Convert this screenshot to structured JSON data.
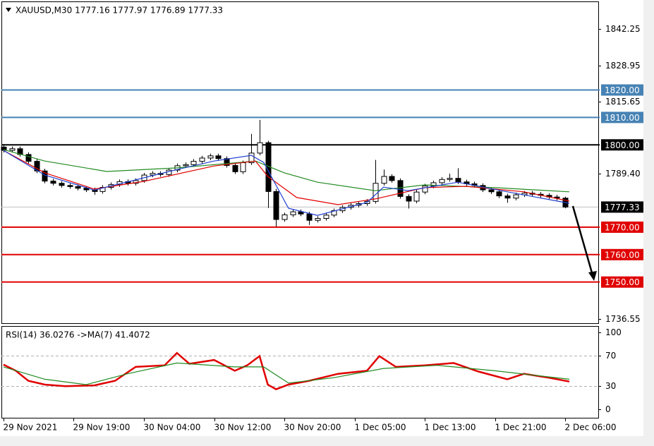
{
  "chart_data": [
    {
      "type": "candlestick",
      "title": "XAUUSD,M30  1777.16 1777.97 1776.89 1777.33",
      "xlim": [
        -0.5,
        144
      ],
      "ylim": [
        1735.0,
        1852.8
      ],
      "yticks": [
        1842.25,
        1828.95,
        1815.65,
        {
          "value": 1789.4,
          "label": "1789.40"
        },
        1736.55
      ],
      "x": [
        0,
        2,
        4,
        6,
        8,
        10,
        12,
        14,
        16,
        18,
        20,
        22,
        24,
        26,
        28,
        30,
        32,
        34,
        36,
        38,
        40,
        42,
        44,
        46,
        48,
        50,
        52,
        54,
        56,
        58,
        60,
        62,
        64,
        66,
        68,
        70,
        72,
        74,
        76,
        78,
        80,
        82,
        84,
        86,
        88,
        90,
        92,
        94,
        96,
        98,
        100,
        102,
        104,
        106,
        108,
        110,
        112,
        114,
        116,
        118,
        120,
        122,
        124,
        126,
        128,
        130,
        132,
        134,
        136
      ],
      "open": [
        1799.2,
        1798.0,
        1798.6,
        1796.5,
        1794.0,
        1790.5,
        1786.8,
        1786.0,
        1785.2,
        1784.8,
        1784.2,
        1783.6,
        1783.0,
        1784.5,
        1785.5,
        1786.6,
        1786.0,
        1787.0,
        1789.0,
        1789.6,
        1789.2,
        1790.8,
        1792.4,
        1792.8,
        1794.0,
        1795.2,
        1796.0,
        1795.0,
        1792.5,
        1790.2,
        1793.5,
        1797.0,
        1800.8,
        1783.0,
        1772.8,
        1774.5,
        1775.6,
        1774.8,
        1772.5,
        1773.2,
        1774.4,
        1776.0,
        1777.2,
        1778.0,
        1778.6,
        1779.4,
        1786.0,
        1788.5,
        1787.0,
        1781.2,
        1779.5,
        1782.8,
        1785.0,
        1786.2,
        1787.4,
        1787.8,
        1786.5,
        1785.8,
        1785.2,
        1783.6,
        1782.9,
        1781.4,
        1780.6,
        1781.8,
        1782.4,
        1782.0,
        1781.6,
        1781.0,
        1780.6
      ],
      "high": [
        1800.0,
        1799.4,
        1799.4,
        1797.3,
        1794.8,
        1791.3,
        1787.6,
        1786.8,
        1786.0,
        1785.6,
        1785.0,
        1784.4,
        1785.3,
        1786.3,
        1787.4,
        1787.4,
        1787.8,
        1789.8,
        1790.4,
        1790.4,
        1791.6,
        1793.2,
        1793.6,
        1794.8,
        1796.0,
        1796.8,
        1796.8,
        1795.8,
        1793.3,
        1794.3,
        1804.0,
        1809.1,
        1801.5,
        1784.0,
        1775.3,
        1776.4,
        1776.4,
        1775.6,
        1774.0,
        1775.2,
        1776.8,
        1778.0,
        1778.8,
        1779.4,
        1780.2,
        1794.5,
        1791.0,
        1789.3,
        1787.8,
        1782.0,
        1783.6,
        1785.8,
        1787.0,
        1788.2,
        1789.5,
        1791.5,
        1787.3,
        1786.6,
        1786.0,
        1784.4,
        1783.7,
        1782.2,
        1782.6,
        1783.2,
        1783.2,
        1782.8,
        1782.4,
        1781.8,
        1781.1
      ],
      "low": [
        1797.2,
        1797.2,
        1795.7,
        1793.2,
        1789.7,
        1786.0,
        1785.2,
        1784.4,
        1784.0,
        1783.4,
        1782.8,
        1781.8,
        1782.2,
        1783.7,
        1784.7,
        1785.2,
        1785.2,
        1786.2,
        1788.2,
        1788.4,
        1788.4,
        1790.0,
        1791.6,
        1792.0,
        1793.2,
        1794.4,
        1794.2,
        1791.7,
        1789.4,
        1789.4,
        1792.7,
        1796.2,
        1777.0,
        1770.2,
        1772.0,
        1773.7,
        1774.0,
        1770.8,
        1771.7,
        1772.4,
        1773.6,
        1775.2,
        1776.4,
        1777.2,
        1777.8,
        1778.6,
        1785.2,
        1786.2,
        1780.4,
        1776.8,
        1778.7,
        1782.0,
        1784.2,
        1785.4,
        1786.6,
        1785.7,
        1785.0,
        1784.4,
        1782.8,
        1782.1,
        1780.6,
        1778.9,
        1779.8,
        1781.0,
        1781.2,
        1780.8,
        1780.2,
        1779.8,
        1776.89
      ],
      "close": [
        1798.0,
        1798.6,
        1796.5,
        1794.0,
        1790.5,
        1786.8,
        1786.0,
        1785.2,
        1784.8,
        1784.2,
        1783.6,
        1783.0,
        1784.5,
        1785.5,
        1786.6,
        1786.0,
        1787.0,
        1789.0,
        1789.6,
        1789.2,
        1790.8,
        1792.4,
        1792.8,
        1794.0,
        1795.2,
        1796.0,
        1795.0,
        1792.5,
        1790.2,
        1793.5,
        1797.0,
        1800.8,
        1783.0,
        1772.8,
        1774.5,
        1775.6,
        1774.8,
        1772.5,
        1773.2,
        1774.4,
        1776.0,
        1777.2,
        1778.0,
        1778.6,
        1779.4,
        1786.0,
        1788.5,
        1787.0,
        1781.2,
        1779.5,
        1782.8,
        1785.0,
        1786.2,
        1787.4,
        1787.8,
        1786.5,
        1785.8,
        1785.2,
        1783.6,
        1782.9,
        1781.4,
        1780.6,
        1781.8,
        1782.4,
        1782.0,
        1781.6,
        1781.0,
        1780.6,
        1777.33
      ],
      "overlays": [
        {
          "color": "#228b22",
          "x": [
            0,
            10,
            25,
            42,
            61,
            68,
            76,
            90,
            102,
            119,
            137
          ],
          "values": [
            1798.3,
            1794.1,
            1790.3,
            1791.6,
            1794.1,
            1789.8,
            1786.4,
            1783.3,
            1785.4,
            1784.4,
            1782.9
          ]
        },
        {
          "color": "#e00000",
          "x": [
            0,
            10,
            22,
            34,
            51,
            61,
            64,
            71,
            81,
            90,
            102,
            112,
            126,
            137
          ],
          "values": [
            1798.0,
            1789.8,
            1783.9,
            1786.7,
            1792.3,
            1794.1,
            1788.5,
            1780.8,
            1778.2,
            1780.3,
            1784.4,
            1784.9,
            1782.9,
            1779.5
          ]
        },
        {
          "color": "#1f3fd0",
          "x": [
            0,
            10,
            22,
            42,
            51,
            60,
            63,
            69,
            76,
            88,
            92,
            98,
            110,
            122,
            137
          ],
          "values": [
            1798.0,
            1789.0,
            1783.5,
            1791.0,
            1794.1,
            1796.2,
            1793.6,
            1776.9,
            1774.3,
            1779.0,
            1784.6,
            1783.3,
            1786.4,
            1782.9,
            1778.7
          ]
        }
      ],
      "levels": [
        {
          "value": 1820,
          "label": "1820.00",
          "color": "#4682b4"
        },
        {
          "value": 1810,
          "label": "1810.00",
          "color": "#4682b4"
        },
        {
          "value": 1800,
          "label": "1800.00",
          "color": "#000000"
        },
        {
          "value": 1770,
          "label": "1770.00",
          "color": "#e00000"
        },
        {
          "value": 1760,
          "label": "1760.00",
          "color": "#e00000"
        },
        {
          "value": 1750,
          "label": "1750.00",
          "color": "#e00000"
        }
      ],
      "last_price": {
        "value": 1777.33,
        "label": "1777.33"
      }
    },
    {
      "type": "line",
      "title": "RSI(14) 36.0276  ->MA(7) 41.4072",
      "xlim": [
        -0.5,
        144
      ],
      "ylim": [
        -11,
        108
      ],
      "yticks": [
        100,
        70,
        30,
        0
      ],
      "xticks": [
        {
          "value": 0,
          "label": "29 Nov 2021"
        },
        {
          "value": 17,
          "label": "29 Nov 19:00"
        },
        {
          "value": 34,
          "label": "30 Nov 04:00"
        },
        {
          "value": 51,
          "label": "30 Nov 12:00"
        },
        {
          "value": 68,
          "label": "30 Nov 20:00"
        },
        {
          "value": 85,
          "label": "1 Dec 05:00"
        },
        {
          "value": 102,
          "label": "1 Dec 13:00"
        },
        {
          "value": 119,
          "label": "1 Dec 21:00"
        },
        {
          "value": 136,
          "label": "2 Dec 06:00"
        }
      ],
      "series": [
        {
          "color": "#e00000",
          "x": [
            0,
            3,
            6,
            10,
            15,
            22,
            27,
            32,
            39,
            42,
            45,
            51,
            56,
            59,
            62,
            64,
            66,
            69,
            74,
            81,
            88,
            91,
            95,
            102,
            109,
            115,
            122,
            126,
            132,
            137
          ],
          "values": [
            58,
            50,
            37,
            32,
            30,
            31,
            37,
            55,
            57,
            73,
            59,
            64,
            50,
            57,
            69,
            32,
            26,
            32,
            37,
            46,
            50,
            69,
            55,
            57,
            60,
            49,
            39,
            46,
            41,
            36
          ]
        },
        {
          "color": "#228b22",
          "x": [
            0,
            10,
            20,
            30,
            42,
            56,
            63,
            69,
            80,
            92,
            105,
            119,
            137
          ],
          "values": [
            55,
            39,
            32,
            46,
            60,
            55,
            55,
            34,
            41,
            53,
            57,
            50,
            39
          ]
        }
      ]
    }
  ]
}
